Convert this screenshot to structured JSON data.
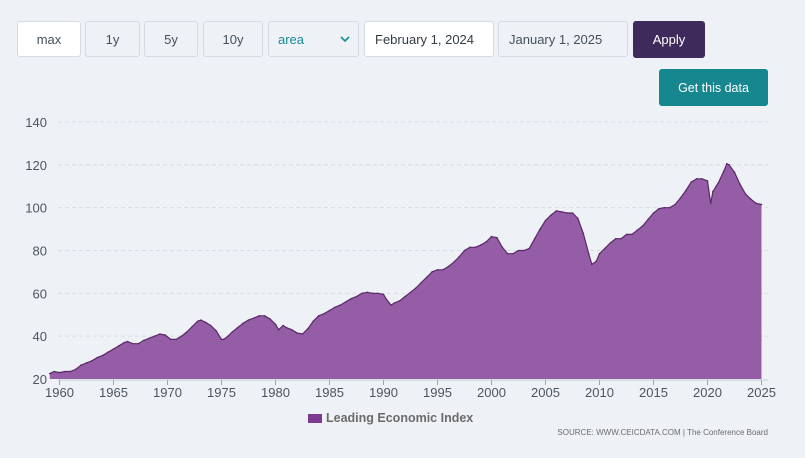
{
  "toolbar": {
    "range_buttons": [
      "max",
      "1y",
      "5y",
      "10y"
    ],
    "chart_type": "area",
    "start_date": "February 1, 2024",
    "end_date": "January 1, 2025",
    "apply_label": "Apply"
  },
  "get_data_label": "Get this data",
  "legend_label": "Leading Economic Index",
  "source": "SOURCE: WWW.CEICDATA.COM | The Conference Board",
  "colors": {
    "series": "#8e54a0",
    "series_line": "#5a2a68",
    "apply": "#3f2a5c",
    "get_data": "#16868f",
    "select_text": "#1a8a96"
  },
  "chart_data": {
    "type": "area",
    "title": "",
    "xlabel": "",
    "ylabel": "",
    "ylim": [
      20,
      140
    ],
    "xlim": [
      1959,
      2025
    ],
    "y_ticks": [
      20,
      40,
      60,
      80,
      100,
      120,
      140
    ],
    "x_ticks": [
      1960,
      1965,
      1970,
      1975,
      1980,
      1985,
      1990,
      1995,
      2000,
      2005,
      2010,
      2015,
      2020,
      2025
    ],
    "grid": true,
    "legend": "bottom",
    "series": [
      {
        "name": "Leading Economic Index",
        "x": [
          1959.1,
          1959.5,
          1960.0,
          1960.5,
          1961.0,
          1961.5,
          1962.0,
          1962.5,
          1963.0,
          1963.5,
          1964.0,
          1964.5,
          1965.0,
          1965.5,
          1966.0,
          1966.3,
          1966.8,
          1967.3,
          1967.8,
          1968.3,
          1968.8,
          1969.3,
          1969.8,
          1970.3,
          1970.8,
          1971.3,
          1971.8,
          1972.3,
          1972.8,
          1973.1,
          1973.5,
          1974.0,
          1974.5,
          1975.0,
          1975.2,
          1975.6,
          1976.0,
          1976.5,
          1977.0,
          1977.5,
          1978.0,
          1978.5,
          1979.0,
          1979.5,
          1980.0,
          1980.3,
          1980.7,
          1981.0,
          1981.5,
          1982.0,
          1982.5,
          1983.0,
          1983.5,
          1984.0,
          1984.5,
          1985.0,
          1985.5,
          1986.0,
          1986.5,
          1987.0,
          1987.5,
          1988.0,
          1988.5,
          1989.0,
          1989.5,
          1990.0,
          1990.3,
          1990.7,
          1991.0,
          1991.5,
          1992.0,
          1992.5,
          1993.0,
          1993.5,
          1994.0,
          1994.5,
          1995.0,
          1995.5,
          1996.0,
          1996.5,
          1997.0,
          1997.5,
          1998.0,
          1998.5,
          1999.0,
          1999.5,
          2000.0,
          2000.5,
          2001.0,
          2001.5,
          2002.0,
          2002.5,
          2003.0,
          2003.5,
          2004.0,
          2004.5,
          2005.0,
          2005.5,
          2006.0,
          2006.5,
          2007.0,
          2007.5,
          2008.0,
          2008.5,
          2009.0,
          2009.3,
          2009.7,
          2010.0,
          2010.5,
          2011.0,
          2011.5,
          2012.0,
          2012.5,
          2013.0,
          2013.5,
          2014.0,
          2014.5,
          2015.0,
          2015.5,
          2016.0,
          2016.5,
          2017.0,
          2017.5,
          2018.0,
          2018.5,
          2019.0,
          2019.5,
          2020.0,
          2020.3,
          2020.5,
          2020.8,
          2021.0,
          2021.5,
          2021.8,
          2022.0,
          2022.5,
          2023.0,
          2023.5,
          2024.0,
          2024.5,
          2025.0
        ],
        "values": [
          22.5,
          23.5,
          23.0,
          23.5,
          23.5,
          24.5,
          26.5,
          27.5,
          28.5,
          30.0,
          31.0,
          32.5,
          34.0,
          35.5,
          37.0,
          37.5,
          36.5,
          36.5,
          38.0,
          39.0,
          40.0,
          41.0,
          40.5,
          38.5,
          38.5,
          40.0,
          42.0,
          44.5,
          47.0,
          47.5,
          46.5,
          45.0,
          42.5,
          38.5,
          38.5,
          40.0,
          42.0,
          44.0,
          46.0,
          47.5,
          48.5,
          49.5,
          49.5,
          48.0,
          45.5,
          43.0,
          45.0,
          44.0,
          43.0,
          41.5,
          41.0,
          43.5,
          47.0,
          49.5,
          50.5,
          52.0,
          53.5,
          54.5,
          56.0,
          57.5,
          58.5,
          60.0,
          60.5,
          60.0,
          60.0,
          59.5,
          57.0,
          54.5,
          55.5,
          56.5,
          58.5,
          60.5,
          62.5,
          65.0,
          67.5,
          70.0,
          71.0,
          71.0,
          72.5,
          74.5,
          77.0,
          80.0,
          81.5,
          81.5,
          82.5,
          84.0,
          86.5,
          86.0,
          81.5,
          78.5,
          78.5,
          80.0,
          80.0,
          81.0,
          85.5,
          90.0,
          94.0,
          96.5,
          98.5,
          98.0,
          97.5,
          97.5,
          95.0,
          88.0,
          78.5,
          73.5,
          75.0,
          78.5,
          81.0,
          83.5,
          85.5,
          85.5,
          87.5,
          87.5,
          89.5,
          91.5,
          94.5,
          97.5,
          99.5,
          100.0,
          100.0,
          101.5,
          104.5,
          108.0,
          112.0,
          113.5,
          113.5,
          112.5,
          102.0,
          107.5,
          110.0,
          111.5,
          117.0,
          120.5,
          120.0,
          116.5,
          111.0,
          106.5,
          104.0,
          102.0,
          101.5
        ]
      }
    ]
  }
}
